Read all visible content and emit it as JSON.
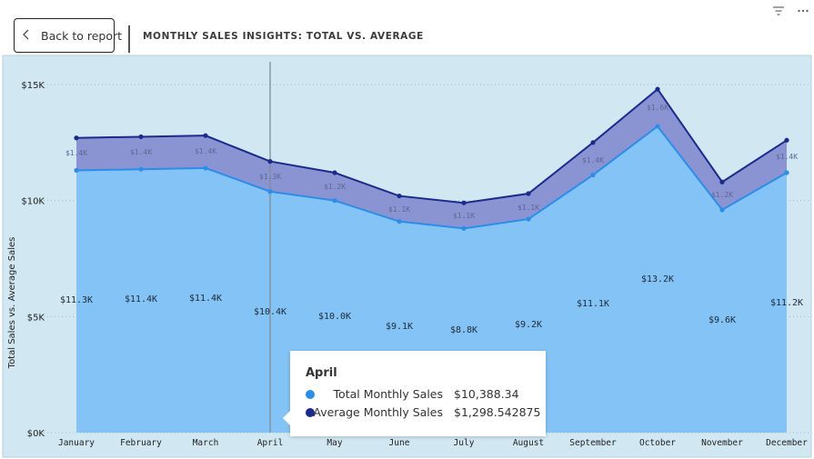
{
  "header": {
    "back_label": "Back to report",
    "title": "MONTHLY SALES INSIGHTS: TOTAL VS. AVERAGE"
  },
  "icons": [
    "chevron-left-icon",
    "filter-icon",
    "more-options-icon"
  ],
  "colors": {
    "plot_bg": "#d1e7f2",
    "total_line": "#2b8de8",
    "total_fill": "#84c3f5",
    "average_line": "#1a2b8c",
    "average_band": "#8b94d3",
    "hover_line": "#7f8c97"
  },
  "chart_data": {
    "type": "area",
    "xlabel": "",
    "ylabel": "Total Sales vs. Average Sales",
    "ylim": [
      0,
      15000
    ],
    "yticks": [
      0,
      5000,
      10000,
      15000
    ],
    "ytick_labels": [
      "$0K",
      "$5K",
      "$10K",
      "$15K"
    ],
    "grid": true,
    "categories": [
      "January",
      "February",
      "March",
      "April",
      "May",
      "June",
      "July",
      "August",
      "September",
      "October",
      "November",
      "December"
    ],
    "series": [
      {
        "name": "Total Monthly Sales",
        "values": [
          11300,
          11350,
          11400,
          10388.34,
          10000,
          9100,
          8800,
          9200,
          11100,
          13200,
          9600,
          11200
        ],
        "labels": [
          "$11.3K",
          "$11.4K",
          "$11.4K",
          "$10.4K",
          "$10.0K",
          "$9.1K",
          "$8.8K",
          "$9.2K",
          "$11.1K",
          "$13.2K",
          "$9.6K",
          "$11.2K"
        ]
      },
      {
        "name": "Average Monthly Sales",
        "values": [
          1400,
          1400,
          1400,
          1298.542875,
          1200,
          1100,
          1100,
          1100,
          1400,
          1600,
          1200,
          1400
        ],
        "labels": [
          "$1.4K",
          "$1.4K",
          "$1.4K",
          "$1.3K",
          "$1.2K",
          "$1.1K",
          "$1.1K",
          "$1.1K",
          "$1.4K",
          "$1.6K",
          "$1.2K",
          "$1.4K"
        ]
      }
    ],
    "hover_index": 3
  },
  "tooltip": {
    "title": "April",
    "rows": [
      {
        "name": "Total Monthly Sales",
        "value": "$10,388.34"
      },
      {
        "name": "Average Monthly Sales",
        "value": "$1,298.542875"
      }
    ]
  }
}
